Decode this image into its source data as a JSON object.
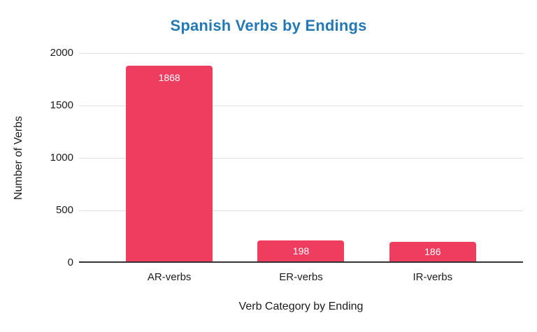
{
  "chart_data": {
    "type": "bar",
    "title": "Spanish Verbs by Endings",
    "categories": [
      "AR-verbs",
      "ER-verbs",
      "IR-verbs"
    ],
    "values": [
      1868,
      198,
      186
    ],
    "value_labels": [
      "1868",
      "198",
      "186"
    ],
    "xlabel": "Verb Category by Ending",
    "ylabel": "Number of Verbs",
    "ylim": [
      0,
      2000
    ],
    "yticks": [
      0,
      500,
      1000,
      1500,
      2000
    ],
    "grid": true,
    "legend": "none",
    "colors": {
      "bar": "#ee3d5f",
      "title": "#2379b5",
      "gridline": "#e0e0e0",
      "axis_line": "#333333",
      "text": "#1c1c1c",
      "value_label": "#ffffff"
    }
  }
}
